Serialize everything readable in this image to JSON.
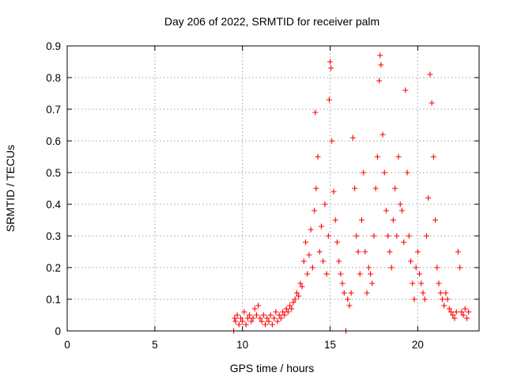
{
  "chart_data": {
    "type": "scatter",
    "title": "Day 206 of 2022, SRMTID for receiver palm",
    "xlabel": "GPS time / hours",
    "ylabel": "SRMTID / TECUs",
    "xlim": [
      0,
      23.5
    ],
    "ylim": [
      0,
      0.9
    ],
    "xticks": [
      0,
      5,
      10,
      15,
      20
    ],
    "yticks": [
      0,
      0.1,
      0.2,
      0.3,
      0.4,
      0.5,
      0.6,
      0.7,
      0.8,
      0.9
    ],
    "xtick_labels": [
      "0",
      "5",
      "10",
      "15",
      "20"
    ],
    "ytick_labels": [
      "0",
      "0.1",
      "0.2",
      "0.3",
      "0.4",
      "0.5",
      "0.6",
      "0.7",
      "0.8",
      "0.9"
    ],
    "grid": true,
    "marker": "plus",
    "color": "#ff0000",
    "series": [
      {
        "name": "SRMTID",
        "points": [
          [
            9.5,
            0.0
          ],
          [
            9.55,
            0.04
          ],
          [
            9.6,
            0.03
          ],
          [
            9.7,
            0.05
          ],
          [
            9.8,
            0.02
          ],
          [
            9.9,
            0.04
          ],
          [
            10.0,
            0.03
          ],
          [
            10.1,
            0.06
          ],
          [
            10.2,
            0.02
          ],
          [
            10.3,
            0.04
          ],
          [
            10.4,
            0.05
          ],
          [
            10.5,
            0.03
          ],
          [
            10.6,
            0.04
          ],
          [
            10.7,
            0.07
          ],
          [
            10.8,
            0.05
          ],
          [
            10.9,
            0.08
          ],
          [
            11.0,
            0.04
          ],
          [
            11.1,
            0.03
          ],
          [
            11.2,
            0.05
          ],
          [
            11.3,
            0.02
          ],
          [
            11.4,
            0.04
          ],
          [
            11.5,
            0.03
          ],
          [
            11.6,
            0.05
          ],
          [
            11.7,
            0.02
          ],
          [
            11.8,
            0.04
          ],
          [
            11.9,
            0.06
          ],
          [
            12.0,
            0.03
          ],
          [
            12.1,
            0.05
          ],
          [
            12.2,
            0.04
          ],
          [
            12.3,
            0.06
          ],
          [
            12.4,
            0.05
          ],
          [
            12.5,
            0.07
          ],
          [
            12.6,
            0.06
          ],
          [
            12.7,
            0.08
          ],
          [
            12.8,
            0.07
          ],
          [
            12.9,
            0.09
          ],
          [
            13.0,
            0.1
          ],
          [
            13.1,
            0.12
          ],
          [
            13.2,
            0.11
          ],
          [
            13.3,
            0.15
          ],
          [
            13.4,
            0.14
          ],
          [
            13.5,
            0.22
          ],
          [
            13.6,
            0.28
          ],
          [
            13.7,
            0.18
          ],
          [
            13.8,
            0.24
          ],
          [
            13.9,
            0.32
          ],
          [
            14.0,
            0.2
          ],
          [
            14.1,
            0.38
          ],
          [
            14.15,
            0.69
          ],
          [
            14.2,
            0.45
          ],
          [
            14.3,
            0.55
          ],
          [
            14.4,
            0.25
          ],
          [
            14.5,
            0.33
          ],
          [
            14.6,
            0.22
          ],
          [
            14.7,
            0.4
          ],
          [
            14.8,
            0.18
          ],
          [
            14.9,
            0.3
          ],
          [
            14.95,
            0.73
          ],
          [
            15.0,
            0.85
          ],
          [
            15.05,
            0.83
          ],
          [
            15.1,
            0.6
          ],
          [
            15.2,
            0.44
          ],
          [
            15.3,
            0.35
          ],
          [
            15.4,
            0.28
          ],
          [
            15.5,
            0.22
          ],
          [
            15.6,
            0.18
          ],
          [
            15.7,
            0.15
          ],
          [
            15.8,
            0.12
          ],
          [
            15.9,
            0.0
          ],
          [
            16.0,
            0.1
          ],
          [
            16.1,
            0.08
          ],
          [
            16.2,
            0.12
          ],
          [
            16.3,
            0.61
          ],
          [
            16.4,
            0.45
          ],
          [
            16.5,
            0.3
          ],
          [
            16.6,
            0.25
          ],
          [
            16.7,
            0.18
          ],
          [
            16.8,
            0.35
          ],
          [
            16.9,
            0.5
          ],
          [
            17.0,
            0.25
          ],
          [
            17.1,
            0.12
          ],
          [
            17.2,
            0.2
          ],
          [
            17.3,
            0.18
          ],
          [
            17.4,
            0.15
          ],
          [
            17.5,
            0.3
          ],
          [
            17.6,
            0.45
          ],
          [
            17.7,
            0.55
          ],
          [
            17.8,
            0.79
          ],
          [
            17.85,
            0.87
          ],
          [
            17.9,
            0.84
          ],
          [
            18.0,
            0.62
          ],
          [
            18.1,
            0.5
          ],
          [
            18.2,
            0.38
          ],
          [
            18.3,
            0.3
          ],
          [
            18.4,
            0.25
          ],
          [
            18.5,
            0.2
          ],
          [
            18.6,
            0.35
          ],
          [
            18.7,
            0.45
          ],
          [
            18.8,
            0.3
          ],
          [
            18.9,
            0.55
          ],
          [
            19.0,
            0.4
          ],
          [
            19.1,
            0.38
          ],
          [
            19.2,
            0.28
          ],
          [
            19.3,
            0.76
          ],
          [
            19.4,
            0.5
          ],
          [
            19.5,
            0.3
          ],
          [
            19.6,
            0.22
          ],
          [
            19.7,
            0.15
          ],
          [
            19.8,
            0.1
          ],
          [
            19.9,
            0.2
          ],
          [
            20.0,
            0.25
          ],
          [
            20.1,
            0.18
          ],
          [
            20.2,
            0.15
          ],
          [
            20.3,
            0.12
          ],
          [
            20.4,
            0.1
          ],
          [
            20.5,
            0.3
          ],
          [
            20.6,
            0.42
          ],
          [
            20.7,
            0.81
          ],
          [
            20.8,
            0.72
          ],
          [
            20.9,
            0.55
          ],
          [
            21.0,
            0.35
          ],
          [
            21.1,
            0.2
          ],
          [
            21.2,
            0.15
          ],
          [
            21.3,
            0.12
          ],
          [
            21.4,
            0.1
          ],
          [
            21.5,
            0.08
          ],
          [
            21.6,
            0.12
          ],
          [
            21.7,
            0.1
          ],
          [
            21.8,
            0.07
          ],
          [
            21.9,
            0.06
          ],
          [
            22.0,
            0.05
          ],
          [
            22.1,
            0.04
          ],
          [
            22.2,
            0.06
          ],
          [
            22.3,
            0.25
          ],
          [
            22.4,
            0.2
          ],
          [
            22.5,
            0.06
          ],
          [
            22.6,
            0.05
          ],
          [
            22.7,
            0.07
          ],
          [
            22.8,
            0.04
          ],
          [
            22.9,
            0.06
          ]
        ]
      }
    ]
  }
}
